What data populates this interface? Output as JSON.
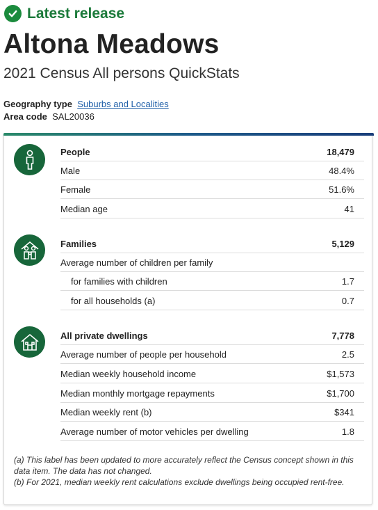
{
  "release_label": "Latest release",
  "title": "Altona Meadows",
  "subtitle": "2021 Census All persons QuickStats",
  "geography": {
    "label": "Geography type",
    "value": "Suburbs and Localities"
  },
  "area_code": {
    "label": "Area code",
    "value": "SAL20036"
  },
  "sections": {
    "people": {
      "icon": "person-icon",
      "rows": [
        {
          "label": "People",
          "value": "18,479"
        },
        {
          "label": "Male",
          "value": "48.4%"
        },
        {
          "label": "Female",
          "value": "51.6%"
        },
        {
          "label": "Median age",
          "value": "41"
        }
      ]
    },
    "families": {
      "icon": "family-icon",
      "rows": [
        {
          "label": "Families",
          "value": "5,129"
        },
        {
          "label": "Average number of children per family",
          "value": ""
        },
        {
          "label": "for families with children",
          "value": "1.7"
        },
        {
          "label": "for all households (a)",
          "value": "0.7"
        }
      ]
    },
    "dwellings": {
      "icon": "house-icon",
      "rows": [
        {
          "label": "All private dwellings",
          "value": "7,778"
        },
        {
          "label": "Average number of people per household",
          "value": "2.5"
        },
        {
          "label": "Median weekly household income",
          "value": "$1,573"
        },
        {
          "label": "Median monthly mortgage repayments",
          "value": "$1,700"
        },
        {
          "label": "Median weekly rent (b)",
          "value": "$341"
        },
        {
          "label": "Average number of motor vehicles per dwelling",
          "value": "1.8"
        }
      ]
    }
  },
  "notes": [
    "(a) This label has been updated to more accurately reflect the Census concept shown in this data item. The data has not changed.",
    "(b) For 2021, median weekly rent calculations exclude dwellings being occupied rent-free."
  ],
  "colors": {
    "accent_green": "#1b8b3d",
    "icon_green": "#17663a",
    "link_blue": "#1f5fa8"
  }
}
